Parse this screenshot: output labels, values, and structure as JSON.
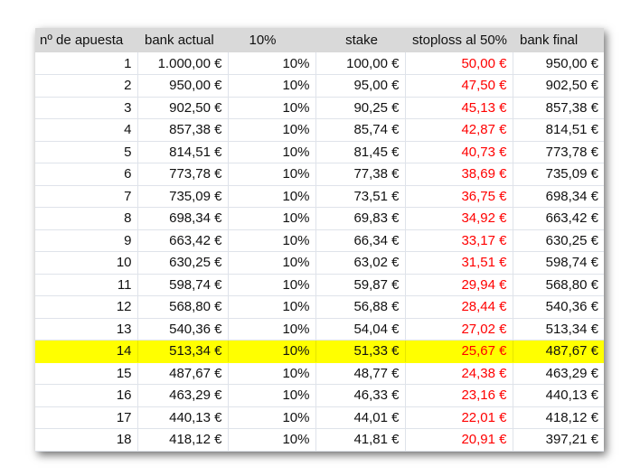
{
  "headers": [
    "nº de apuesta",
    "bank actual",
    "10%",
    "stake",
    "stoploss al 50%",
    "bank final"
  ],
  "highlight_color": "#ffff00",
  "stoploss_color": "#ff0000",
  "rows": [
    [
      "1",
      "1.000,00 €",
      "10%",
      "100,00 €",
      "50,00 €",
      "950,00 €"
    ],
    [
      "2",
      "950,00 €",
      "10%",
      "95,00 €",
      "47,50 €",
      "902,50 €"
    ],
    [
      "3",
      "902,50 €",
      "10%",
      "90,25 €",
      "45,13 €",
      "857,38 €"
    ],
    [
      "4",
      "857,38 €",
      "10%",
      "85,74 €",
      "42,87 €",
      "814,51 €"
    ],
    [
      "5",
      "814,51 €",
      "10%",
      "81,45 €",
      "40,73 €",
      "773,78 €"
    ],
    [
      "6",
      "773,78 €",
      "10%",
      "77,38 €",
      "38,69 €",
      "735,09 €"
    ],
    [
      "7",
      "735,09 €",
      "10%",
      "73,51 €",
      "36,75 €",
      "698,34 €"
    ],
    [
      "8",
      "698,34 €",
      "10%",
      "69,83 €",
      "34,92 €",
      "663,42 €"
    ],
    [
      "9",
      "663,42 €",
      "10%",
      "66,34 €",
      "33,17 €",
      "630,25 €"
    ],
    [
      "10",
      "630,25 €",
      "10%",
      "63,02 €",
      "31,51 €",
      "598,74 €"
    ],
    [
      "11",
      "598,74 €",
      "10%",
      "59,87 €",
      "29,94 €",
      "568,80 €"
    ],
    [
      "12",
      "568,80 €",
      "10%",
      "56,88 €",
      "28,44 €",
      "540,36 €"
    ],
    [
      "13",
      "540,36 €",
      "10%",
      "54,04 €",
      "27,02 €",
      "513,34 €"
    ],
    [
      "14",
      "513,34 €",
      "10%",
      "51,33 €",
      "25,67 €",
      "487,67 €"
    ],
    [
      "15",
      "487,67 €",
      "10%",
      "48,77 €",
      "24,38 €",
      "463,29 €"
    ],
    [
      "16",
      "463,29 €",
      "10%",
      "46,33 €",
      "23,16 €",
      "440,13 €"
    ],
    [
      "17",
      "440,13 €",
      "10%",
      "44,01 €",
      "22,01 €",
      "418,12 €"
    ],
    [
      "18",
      "418,12 €",
      "10%",
      "41,81 €",
      "20,91 €",
      "397,21 €"
    ]
  ]
}
